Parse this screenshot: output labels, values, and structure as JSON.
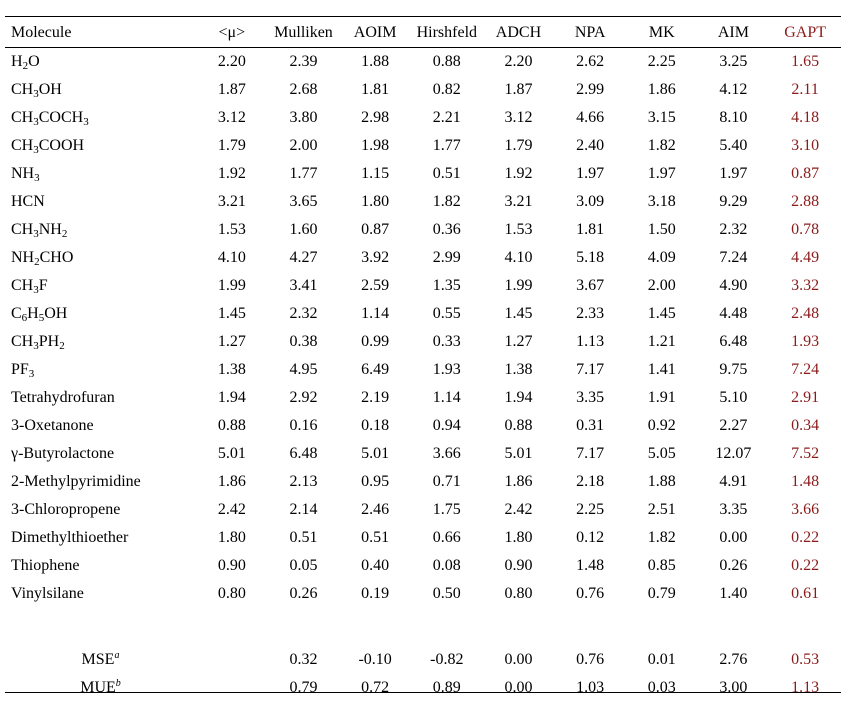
{
  "table": {
    "headers": [
      "Molecule",
      "<μ>",
      "Mulliken",
      "AOIM",
      "Hirshfeld",
      "ADCH",
      "NPA",
      "MK",
      "AIM",
      "GAPT"
    ],
    "rows": [
      {
        "molecule": [
          [
            "H",
            ""
          ],
          [
            "2",
            "sub"
          ],
          [
            "O",
            ""
          ]
        ],
        "values": [
          "2.20",
          "2.39",
          "1.88",
          "0.88",
          "2.20",
          "2.62",
          "2.25",
          "3.25",
          "1.65"
        ]
      },
      {
        "molecule": [
          [
            "CH",
            ""
          ],
          [
            "3",
            "sub"
          ],
          [
            "OH",
            ""
          ]
        ],
        "values": [
          "1.87",
          "2.68",
          "1.81",
          "0.82",
          "1.87",
          "2.99",
          "1.86",
          "4.12",
          "2.11"
        ]
      },
      {
        "molecule": [
          [
            "CH",
            ""
          ],
          [
            "3",
            "sub"
          ],
          [
            "COCH",
            ""
          ],
          [
            "3",
            "sub"
          ]
        ],
        "values": [
          "3.12",
          "3.80",
          "2.98",
          "2.21",
          "3.12",
          "4.66",
          "3.15",
          "8.10",
          "4.18"
        ]
      },
      {
        "molecule": [
          [
            "CH",
            ""
          ],
          [
            "3",
            "sub"
          ],
          [
            "COOH",
            ""
          ]
        ],
        "values": [
          "1.79",
          "2.00",
          "1.98",
          "1.77",
          "1.79",
          "2.40",
          "1.82",
          "5.40",
          "3.10"
        ]
      },
      {
        "molecule": [
          [
            "NH",
            ""
          ],
          [
            "3",
            "sub"
          ]
        ],
        "values": [
          "1.92",
          "1.77",
          "1.15",
          "0.51",
          "1.92",
          "1.97",
          "1.97",
          "1.97",
          "0.87"
        ]
      },
      {
        "molecule": [
          [
            "HCN",
            ""
          ]
        ],
        "values": [
          "3.21",
          "3.65",
          "1.80",
          "1.82",
          "3.21",
          "3.09",
          "3.18",
          "9.29",
          "2.88"
        ]
      },
      {
        "molecule": [
          [
            "CH",
            ""
          ],
          [
            "3",
            "sub"
          ],
          [
            "NH",
            ""
          ],
          [
            "2",
            "sub"
          ]
        ],
        "values": [
          "1.53",
          "1.60",
          "0.87",
          "0.36",
          "1.53",
          "1.81",
          "1.50",
          "2.32",
          "0.78"
        ]
      },
      {
        "molecule": [
          [
            "NH",
            ""
          ],
          [
            "2",
            "sub"
          ],
          [
            "CHO",
            ""
          ]
        ],
        "values": [
          "4.10",
          "4.27",
          "3.92",
          "2.99",
          "4.10",
          "5.18",
          "4.09",
          "7.24",
          "4.49"
        ]
      },
      {
        "molecule": [
          [
            "CH",
            ""
          ],
          [
            "3",
            "sub"
          ],
          [
            "F",
            ""
          ]
        ],
        "values": [
          "1.99",
          "3.41",
          "2.59",
          "1.35",
          "1.99",
          "3.67",
          "2.00",
          "4.90",
          "3.32"
        ]
      },
      {
        "molecule": [
          [
            "C",
            ""
          ],
          [
            "6",
            "sub"
          ],
          [
            "H",
            ""
          ],
          [
            "5",
            "sub"
          ],
          [
            "OH",
            ""
          ]
        ],
        "values": [
          "1.45",
          "2.32",
          "1.14",
          "0.55",
          "1.45",
          "2.33",
          "1.45",
          "4.48",
          "2.48"
        ]
      },
      {
        "molecule": [
          [
            "CH",
            ""
          ],
          [
            "3",
            "sub"
          ],
          [
            "PH",
            ""
          ],
          [
            "2",
            "sub"
          ]
        ],
        "values": [
          "1.27",
          "0.38",
          "0.99",
          "0.33",
          "1.27",
          "1.13",
          "1.21",
          "6.48",
          "1.93"
        ]
      },
      {
        "molecule": [
          [
            "PF",
            ""
          ],
          [
            "3",
            "sub"
          ]
        ],
        "values": [
          "1.38",
          "4.95",
          "6.49",
          "1.93",
          "1.38",
          "7.17",
          "1.41",
          "9.75",
          "7.24"
        ]
      },
      {
        "molecule": [
          [
            "Tetrahydrofuran",
            ""
          ]
        ],
        "values": [
          "1.94",
          "2.92",
          "2.19",
          "1.14",
          "1.94",
          "3.35",
          "1.91",
          "5.10",
          "2.91"
        ]
      },
      {
        "molecule": [
          [
            "3-Oxetanone",
            ""
          ]
        ],
        "values": [
          "0.88",
          "0.16",
          "0.18",
          "0.94",
          "0.88",
          "0.31",
          "0.92",
          "2.27",
          "0.34"
        ]
      },
      {
        "molecule": [
          [
            "γ-Butyrolactone",
            ""
          ]
        ],
        "values": [
          "5.01",
          "6.48",
          "5.01",
          "3.66",
          "5.01",
          "7.17",
          "5.05",
          "12.07",
          "7.52"
        ]
      },
      {
        "molecule": [
          [
            "2-Methylpyrimidine",
            ""
          ]
        ],
        "values": [
          "1.86",
          "2.13",
          "0.95",
          "0.71",
          "1.86",
          "2.18",
          "1.88",
          "4.91",
          "1.48"
        ]
      },
      {
        "molecule": [
          [
            "3-Chloropropene",
            ""
          ]
        ],
        "values": [
          "2.42",
          "2.14",
          "2.46",
          "1.75",
          "2.42",
          "2.25",
          "2.51",
          "3.35",
          "3.66"
        ]
      },
      {
        "molecule": [
          [
            "Dimethylthioether",
            ""
          ]
        ],
        "values": [
          "1.80",
          "0.51",
          "0.51",
          "0.66",
          "1.80",
          "0.12",
          "1.82",
          "0.00",
          "0.22"
        ]
      },
      {
        "molecule": [
          [
            "Thiophene",
            ""
          ]
        ],
        "values": [
          "0.90",
          "0.05",
          "0.40",
          "0.08",
          "0.90",
          "1.48",
          "0.85",
          "0.26",
          "0.22"
        ]
      },
      {
        "molecule": [
          [
            "Vinylsilane",
            ""
          ]
        ],
        "values": [
          "0.80",
          "0.26",
          "0.19",
          "0.50",
          "0.80",
          "0.76",
          "0.79",
          "1.40",
          "0.61"
        ]
      }
    ],
    "summary": [
      {
        "label": "MSE",
        "mark": "a",
        "values": [
          "",
          "0.32",
          "-0.10",
          "-0.82",
          "0.00",
          "0.76",
          "0.01",
          "2.76",
          "0.53"
        ]
      },
      {
        "label": "MUE",
        "mark": "b",
        "values": [
          "",
          "0.79",
          "0.72",
          "0.89",
          "0.00",
          "1.03",
          "0.03",
          "3.00",
          "1.13"
        ]
      }
    ]
  },
  "colors": {
    "text": "#000000",
    "gapt_column": "#8b1a1a"
  }
}
